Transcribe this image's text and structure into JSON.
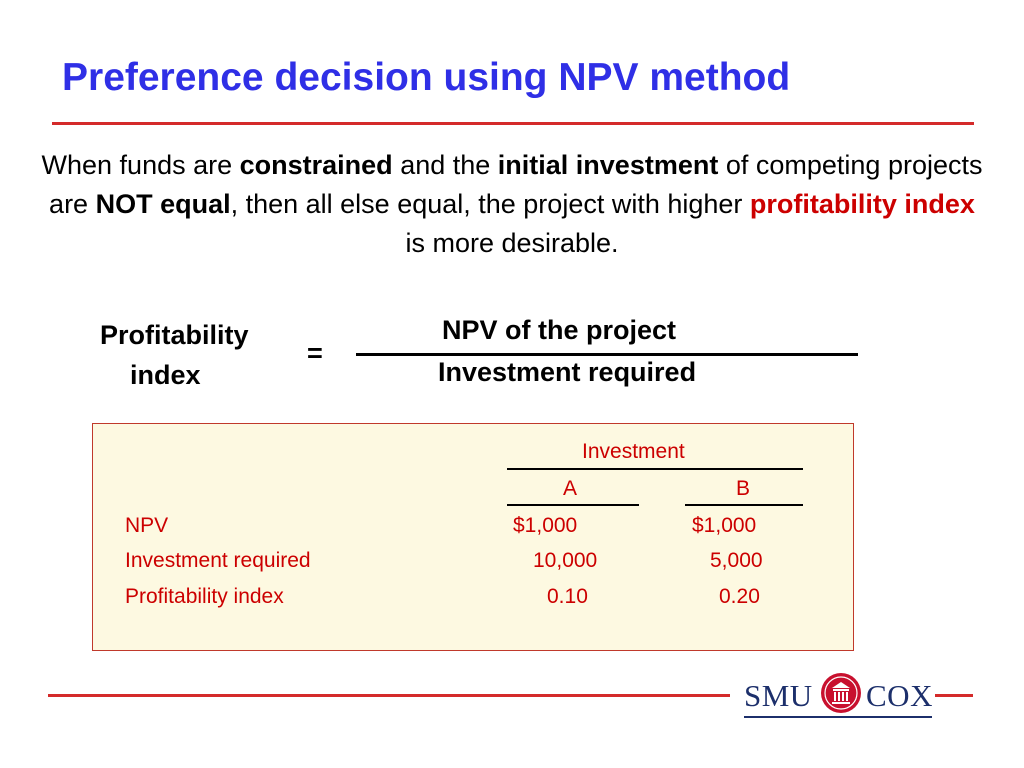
{
  "title": "Preference decision using NPV method",
  "paragraph": {
    "t1": "When funds are ",
    "b1": "constrained",
    "t2": " and the ",
    "b2": "initial investment",
    "t3": " of competing projects are ",
    "b3": "NOT equal",
    "t4": ",  then all else equal, the project with higher ",
    "highlight": "profitability index",
    "t5": " is more desirable."
  },
  "formula": {
    "label_line1": "Profitability",
    "label_line2": "index",
    "equals": "=",
    "numerator": "NPV of the project",
    "denominator": "Investment required"
  },
  "table": {
    "group_header": "Investment",
    "columns": [
      "A",
      "B"
    ],
    "rows": [
      {
        "label": "NPV",
        "a": "$1,000",
        "b": "$1,000"
      },
      {
        "label": "Investment required",
        "a": "10,000",
        "b": "5,000"
      },
      {
        "label": "Profitability index",
        "a": "0.10",
        "b": "0.20"
      }
    ]
  },
  "logo": {
    "left_text": "SMU",
    "right_text": "COX",
    "icon": "smu-seal-icon"
  },
  "colors": {
    "title": "#2f2fe6",
    "rule": "#d42a2a",
    "table_text": "#cc0000",
    "table_bg": "#fdf9e1",
    "logo": "#1c2f6b",
    "seal": "#c8102e"
  }
}
